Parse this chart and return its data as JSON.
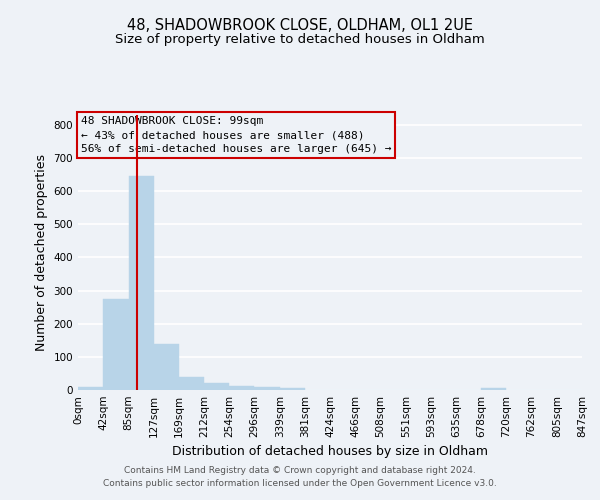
{
  "title": "48, SHADOWBROOK CLOSE, OLDHAM, OL1 2UE",
  "subtitle": "Size of property relative to detached houses in Oldham",
  "xlabel": "Distribution of detached houses by size in Oldham",
  "ylabel": "Number of detached properties",
  "footer_line1": "Contains HM Land Registry data © Crown copyright and database right 2024.",
  "footer_line2": "Contains public sector information licensed under the Open Government Licence v3.0.",
  "annotation_lines": [
    "48 SHADOWBROOK CLOSE: 99sqm",
    "← 43% of detached houses are smaller (488)",
    "56% of semi-detached houses are larger (645) →"
  ],
  "annotation_box_color": "#cc0000",
  "bar_color": "#b8d4e8",
  "bar_edge_color": "#b8d4e8",
  "property_line_color": "#cc0000",
  "property_value": 99,
  "bin_edges": [
    0,
    42,
    85,
    127,
    169,
    212,
    254,
    296,
    339,
    381,
    424,
    466,
    508,
    551,
    593,
    635,
    678,
    720,
    762,
    805,
    847
  ],
  "bin_labels": [
    "0sqm",
    "42sqm",
    "85sqm",
    "127sqm",
    "169sqm",
    "212sqm",
    "254sqm",
    "296sqm",
    "339sqm",
    "381sqm",
    "424sqm",
    "466sqm",
    "508sqm",
    "551sqm",
    "593sqm",
    "635sqm",
    "678sqm",
    "720sqm",
    "762sqm",
    "805sqm",
    "847sqm"
  ],
  "counts": [
    8,
    275,
    645,
    140,
    38,
    20,
    13,
    10,
    5,
    0,
    0,
    0,
    0,
    0,
    0,
    0,
    5,
    0,
    0,
    0
  ],
  "ylim": [
    0,
    830
  ],
  "yticks": [
    0,
    100,
    200,
    300,
    400,
    500,
    600,
    700,
    800
  ],
  "background_color": "#eef2f7",
  "axes_background_color": "#eef2f7",
  "grid_color": "#ffffff",
  "title_fontsize": 10.5,
  "subtitle_fontsize": 9.5,
  "axis_label_fontsize": 9,
  "tick_fontsize": 7.5,
  "footer_fontsize": 6.5,
  "annotation_fontsize": 8
}
